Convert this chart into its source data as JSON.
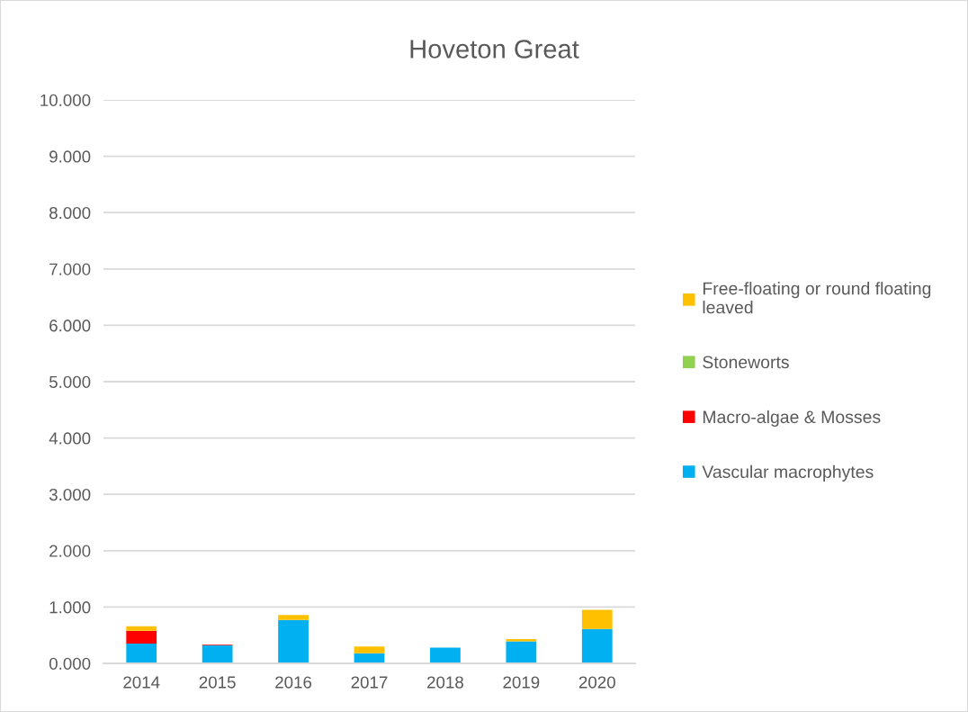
{
  "chart_data": {
    "type": "bar",
    "title": "Hoveton Great",
    "stacked": true,
    "categories": [
      "2014",
      "2015",
      "2016",
      "2017",
      "2018",
      "2019",
      "2020"
    ],
    "series": [
      {
        "name": "Vascular macrophytes",
        "color": "#00b0f0",
        "values": [
          0.35,
          0.32,
          0.77,
          0.18,
          0.28,
          0.39,
          0.61
        ]
      },
      {
        "name": "Macro-algae & Mosses",
        "color": "#ff0000",
        "values": [
          0.23,
          0.01,
          0,
          0,
          0,
          0,
          0
        ]
      },
      {
        "name": "Stoneworts",
        "color": "#92d050",
        "values": [
          0,
          0,
          0,
          0,
          0,
          0,
          0
        ]
      },
      {
        "name": "Free-floating or round floating leaved",
        "color": "#ffc000",
        "values": [
          0.08,
          0,
          0.09,
          0.12,
          0,
          0.04,
          0.34
        ]
      }
    ],
    "ylim": [
      0,
      10
    ],
    "yticks": [
      {
        "value": 0,
        "label": "0.000"
      },
      {
        "value": 1,
        "label": "1.000"
      },
      {
        "value": 2,
        "label": "2.000"
      },
      {
        "value": 3,
        "label": "3.000"
      },
      {
        "value": 4,
        "label": "4.000"
      },
      {
        "value": 5,
        "label": "5.000"
      },
      {
        "value": 6,
        "label": "6.000"
      },
      {
        "value": 7,
        "label": "7.000"
      },
      {
        "value": 8,
        "label": "8.000"
      },
      {
        "value": 9,
        "label": "9.000"
      },
      {
        "value": 10,
        "label": "10.000"
      }
    ],
    "grid": "y",
    "legend": "right"
  }
}
